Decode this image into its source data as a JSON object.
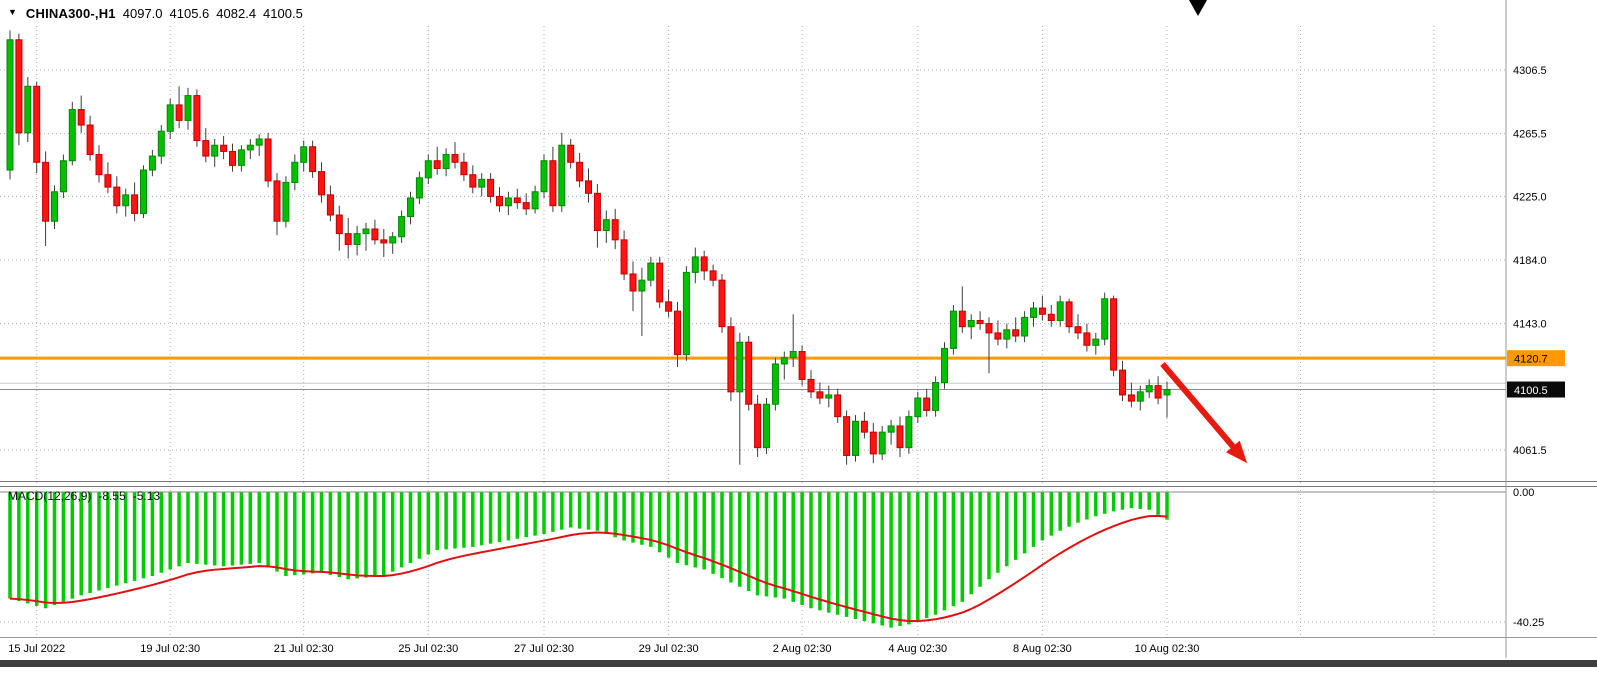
{
  "header": {
    "dropdown_icon": "▼",
    "symbol": "CHINA300-,H1",
    "open": "4097.0",
    "high": "4105.6",
    "low": "4082.4",
    "close": "4100.5"
  },
  "colors": {
    "bull": "#00C000",
    "bull_border": "#008A00",
    "bear": "#FF1414",
    "bear_border": "#C00000",
    "wick": "#3C3C3C",
    "grid": "#ACACAC",
    "hline": "#FF9900",
    "hline_tag_text": "#000000",
    "price_tag_bg": "#0A0A0A",
    "price_tag_text": "#FFFFFF",
    "quote_line": "#8A8A8A",
    "secondary_quote_line": "#C8C8C8",
    "macd_hist": "#00CC00",
    "macd_signal": "#E01010",
    "arrow": "#E8190F",
    "axis_text": "#000000",
    "separator": "#777777",
    "axis_line": "#999999",
    "bottom_band": "#3F3F3F",
    "zero_line": "#888888"
  },
  "chart_data": {
    "type": "candlestick",
    "symbol": "CHINA300-",
    "timeframe": "H1",
    "current_bar": {
      "open": 4097.0,
      "high": 4105.6,
      "low": 4082.4,
      "close": 4100.5
    },
    "price_axis": {
      "ylim": [
        4040,
        4335
      ],
      "gridlines": [
        {
          "text": "4306.5",
          "value": 4306.5
        },
        {
          "text": "4265.5",
          "value": 4265.5
        },
        {
          "text": "4225.0",
          "value": 4225.0
        },
        {
          "text": "4184.0",
          "value": 4184.0
        },
        {
          "text": "4143.0",
          "value": 4143.0
        },
        {
          "text": "4061.5",
          "value": 4061.5
        }
      ]
    },
    "x_axis": {
      "labels": [
        {
          "text": "15 Jul 2022",
          "index": 3
        },
        {
          "text": "19 Jul 02:30",
          "index": 18
        },
        {
          "text": "21 Jul 02:30",
          "index": 33
        },
        {
          "text": "25 Jul 02:30",
          "index": 47
        },
        {
          "text": "27 Jul 02:30",
          "index": 60
        },
        {
          "text": "29 Jul 02:30",
          "index": 74
        },
        {
          "text": "2 Aug 02:30",
          "index": 89
        },
        {
          "text": "4 Aug 02:30",
          "index": 102
        },
        {
          "text": "8 Aug 02:30",
          "index": 116
        },
        {
          "text": "10 Aug 02:30",
          "index": 130
        }
      ],
      "unlabeled_tick_indices": [
        145,
        160
      ]
    },
    "orange_hline": {
      "value": 4120.7,
      "tag": "4120.7"
    },
    "current_price_line": {
      "value": 4100.5,
      "tag": "4100.5"
    },
    "secondary_price_line": {
      "value": 4104.5
    },
    "candles": [
      [
        4242,
        4332,
        4236,
        4326
      ],
      [
        4326,
        4330,
        4258,
        4266
      ],
      [
        4266,
        4302,
        4260,
        4296
      ],
      [
        4296,
        4299,
        4240,
        4247
      ],
      [
        4247,
        4254,
        4193,
        4209
      ],
      [
        4209,
        4232,
        4204,
        4228
      ],
      [
        4228,
        4252,
        4224,
        4248
      ],
      [
        4248,
        4286,
        4245,
        4281
      ],
      [
        4281,
        4290,
        4266,
        4271
      ],
      [
        4271,
        4277,
        4248,
        4252
      ],
      [
        4252,
        4258,
        4234,
        4239
      ],
      [
        4239,
        4247,
        4227,
        4231
      ],
      [
        4231,
        4238,
        4214,
        4219
      ],
      [
        4219,
        4230,
        4212,
        4226
      ],
      [
        4226,
        4234,
        4209,
        4214
      ],
      [
        4214,
        4245,
        4211,
        4242
      ],
      [
        4242,
        4255,
        4238,
        4251
      ],
      [
        4251,
        4271,
        4246,
        4267
      ],
      [
        4267,
        4288,
        4262,
        4284
      ],
      [
        4284,
        4296,
        4269,
        4274
      ],
      [
        4274,
        4295,
        4268,
        4290
      ],
      [
        4290,
        4294,
        4257,
        4261
      ],
      [
        4261,
        4269,
        4247,
        4251
      ],
      [
        4251,
        4262,
        4244,
        4258
      ],
      [
        4258,
        4264,
        4249,
        4254
      ],
      [
        4254,
        4259,
        4241,
        4245
      ],
      [
        4245,
        4258,
        4241,
        4255
      ],
      [
        4255,
        4262,
        4249,
        4258
      ],
      [
        4258,
        4265,
        4251,
        4262
      ],
      [
        4262,
        4266,
        4231,
        4235
      ],
      [
        4235,
        4240,
        4200,
        4209
      ],
      [
        4209,
        4238,
        4205,
        4234
      ],
      [
        4234,
        4252,
        4229,
        4247
      ],
      [
        4247,
        4261,
        4241,
        4257
      ],
      [
        4257,
        4261,
        4237,
        4241
      ],
      [
        4241,
        4247,
        4221,
        4226
      ],
      [
        4226,
        4232,
        4209,
        4213
      ],
      [
        4213,
        4219,
        4190,
        4201
      ],
      [
        4201,
        4211,
        4185,
        4194
      ],
      [
        4194,
        4206,
        4187,
        4201
      ],
      [
        4201,
        4208,
        4190,
        4204
      ],
      [
        4204,
        4210,
        4194,
        4197
      ],
      [
        4197,
        4204,
        4186,
        4195
      ],
      [
        4195,
        4202,
        4188,
        4199
      ],
      [
        4199,
        4216,
        4195,
        4212
      ],
      [
        4212,
        4228,
        4207,
        4224
      ],
      [
        4224,
        4241,
        4220,
        4237
      ],
      [
        4237,
        4252,
        4233,
        4248
      ],
      [
        4248,
        4257,
        4239,
        4243
      ],
      [
        4243,
        4256,
        4238,
        4252
      ],
      [
        4252,
        4260,
        4243,
        4247
      ],
      [
        4247,
        4253,
        4235,
        4239
      ],
      [
        4239,
        4245,
        4227,
        4231
      ],
      [
        4231,
        4240,
        4225,
        4236
      ],
      [
        4236,
        4240,
        4221,
        4225
      ],
      [
        4225,
        4231,
        4215,
        4219
      ],
      [
        4219,
        4228,
        4213,
        4224
      ],
      [
        4224,
        4230,
        4217,
        4221
      ],
      [
        4221,
        4227,
        4213,
        4217
      ],
      [
        4217,
        4232,
        4214,
        4228
      ],
      [
        4228,
        4252,
        4224,
        4248
      ],
      [
        4248,
        4257,
        4215,
        4219
      ],
      [
        4219,
        4266,
        4215,
        4258
      ],
      [
        4258,
        4262,
        4243,
        4247
      ],
      [
        4247,
        4253,
        4231,
        4235
      ],
      [
        4235,
        4243,
        4221,
        4227
      ],
      [
        4227,
        4233,
        4192,
        4203
      ],
      [
        4203,
        4216,
        4195,
        4210
      ],
      [
        4210,
        4217,
        4191,
        4197
      ],
      [
        4197,
        4203,
        4171,
        4175
      ],
      [
        4175,
        4183,
        4151,
        4164
      ],
      [
        4164,
        4179,
        4135,
        4171
      ],
      [
        4171,
        4186,
        4167,
        4182
      ],
      [
        4182,
        4186,
        4153,
        4157
      ],
      [
        4157,
        4165,
        4147,
        4151
      ],
      [
        4151,
        4157,
        4115,
        4123
      ],
      [
        4123,
        4180,
        4119,
        4176
      ],
      [
        4176,
        4192,
        4169,
        4186
      ],
      [
        4186,
        4190,
        4171,
        4177
      ],
      [
        4177,
        4181,
        4167,
        4171
      ],
      [
        4171,
        4175,
        4137,
        4141
      ],
      [
        4141,
        4147,
        4093,
        4099
      ],
      [
        4099,
        4137,
        4052,
        4131
      ],
      [
        4131,
        4135,
        4087,
        4091
      ],
      [
        4091,
        4097,
        4057,
        4063
      ],
      [
        4063,
        4095,
        4059,
        4091
      ],
      [
        4091,
        4121,
        4087,
        4117
      ],
      [
        4117,
        4125,
        4107,
        4121
      ],
      [
        4121,
        4149,
        4115,
        4125
      ],
      [
        4125,
        4129,
        4103,
        4107
      ],
      [
        4107,
        4113,
        4095,
        4099
      ],
      [
        4099,
        4105,
        4091,
        4095
      ],
      [
        4095,
        4103,
        4089,
        4097
      ],
      [
        4097,
        4101,
        4079,
        4083
      ],
      [
        4083,
        4087,
        4052,
        4058
      ],
      [
        4058,
        4084,
        4054,
        4080
      ],
      [
        4080,
        4086,
        4069,
        4073
      ],
      [
        4073,
        4079,
        4053,
        4059
      ],
      [
        4059,
        4077,
        4055,
        4073
      ],
      [
        4073,
        4081,
        4065,
        4077
      ],
      [
        4077,
        4083,
        4057,
        4063
      ],
      [
        4063,
        4087,
        4059,
        4083
      ],
      [
        4083,
        4099,
        4079,
        4095
      ],
      [
        4095,
        4101,
        4083,
        4087
      ],
      [
        4087,
        4109,
        4083,
        4105
      ],
      [
        4105,
        4131,
        4101,
        4127
      ],
      [
        4127,
        4155,
        4123,
        4151
      ],
      [
        4151,
        4167,
        4137,
        4141
      ],
      [
        4141,
        4149,
        4133,
        4145
      ],
      [
        4145,
        4151,
        4139,
        4143
      ],
      [
        4143,
        4147,
        4111,
        4137
      ],
      [
        4137,
        4145,
        4129,
        4133
      ],
      [
        4133,
        4143,
        4127,
        4139
      ],
      [
        4139,
        4147,
        4131,
        4135
      ],
      [
        4135,
        4151,
        4131,
        4147
      ],
      [
        4147,
        4157,
        4141,
        4153
      ],
      [
        4153,
        4161,
        4145,
        4149
      ],
      [
        4149,
        4155,
        4141,
        4145
      ],
      [
        4145,
        4161,
        4141,
        4157
      ],
      [
        4157,
        4159,
        4137,
        4141
      ],
      [
        4141,
        4149,
        4133,
        4137
      ],
      [
        4137,
        4143,
        4125,
        4129
      ],
      [
        4129,
        4137,
        4123,
        4133
      ],
      [
        4133,
        4163,
        4129,
        4159
      ],
      [
        4159,
        4161,
        4109,
        4113
      ],
      [
        4113,
        4119,
        4093,
        4097
      ],
      [
        4097,
        4105,
        4089,
        4093
      ],
      [
        4093,
        4103,
        4087,
        4099
      ],
      [
        4099,
        4107,
        4095,
        4103
      ],
      [
        4103,
        4109,
        4091,
        4095
      ],
      [
        4097,
        4105.6,
        4082.4,
        4100.5
      ]
    ],
    "macd": {
      "label": "MACD(12,26,9)",
      "value_text": "-8.55",
      "signal_text": "-5.13",
      "fast": 12,
      "slow": 26,
      "signal": 9,
      "axis": [
        {
          "text": "0.00",
          "value": 0
        },
        {
          "text": "-40.25",
          "value": -40.25
        }
      ],
      "histogram_control_points": [
        [
          0,
          -33
        ],
        [
          4,
          -36
        ],
        [
          8,
          -32
        ],
        [
          12,
          -29
        ],
        [
          16,
          -26
        ],
        [
          20,
          -22
        ],
        [
          24,
          -23
        ],
        [
          28,
          -22
        ],
        [
          31,
          -26
        ],
        [
          35,
          -25
        ],
        [
          38,
          -27
        ],
        [
          42,
          -26
        ],
        [
          45,
          -22
        ],
        [
          48,
          -18
        ],
        [
          52,
          -17
        ],
        [
          56,
          -15
        ],
        [
          60,
          -13
        ],
        [
          63,
          -11
        ],
        [
          66,
          -12
        ],
        [
          69,
          -15
        ],
        [
          72,
          -17
        ],
        [
          75,
          -22
        ],
        [
          78,
          -24
        ],
        [
          81,
          -28
        ],
        [
          84,
          -32
        ],
        [
          87,
          -33
        ],
        [
          90,
          -36
        ],
        [
          93,
          -38
        ],
        [
          96,
          -40
        ],
        [
          99,
          -42
        ],
        [
          101,
          -41
        ],
        [
          104,
          -38
        ],
        [
          107,
          -34
        ],
        [
          110,
          -27
        ],
        [
          112,
          -23
        ],
        [
          114,
          -19
        ],
        [
          116,
          -15
        ],
        [
          118,
          -12
        ],
        [
          120,
          -9.5
        ],
        [
          122,
          -7.5
        ],
        [
          124,
          -6
        ],
        [
          126,
          -5
        ],
        [
          128,
          -5.5
        ],
        [
          130,
          -8.55
        ]
      ]
    },
    "annotations": [
      {
        "type": "arrow",
        "from": {
          "index": 129.5,
          "price": 4117
        },
        "to": {
          "index": 139,
          "price": 4053
        },
        "color": "#E8190F"
      }
    ]
  }
}
